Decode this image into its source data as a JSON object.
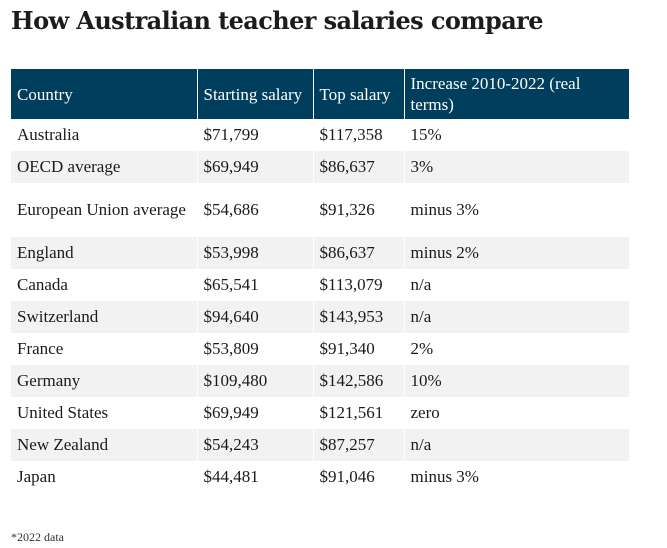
{
  "title": "How Australian teacher salaries compare",
  "table": {
    "headers": [
      "Country",
      "Starting salary",
      "Top salary",
      "Increase 2010-2022 (real terms)"
    ],
    "rows": [
      [
        "Australia",
        "$71,799",
        "$117,358",
        "15%"
      ],
      [
        "OECD average",
        "$69,949",
        "$86,637",
        "3%"
      ],
      [
        "European Union average",
        "$54,686",
        "$91,326",
        "minus 3%"
      ],
      [
        "England",
        "$53,998",
        "$86,637",
        "minus 2%"
      ],
      [
        "Canada",
        "$65,541",
        "$113,079",
        "n/a"
      ],
      [
        "Switzerland",
        "$94,640",
        "$143,953",
        "n/a"
      ],
      [
        "France",
        "$53,809",
        "$91,340",
        "2%"
      ],
      [
        "Germany",
        "$109,480",
        "$142,586",
        "10%"
      ],
      [
        "United States",
        "$69,949",
        "$121,561",
        "zero"
      ],
      [
        "New Zealand",
        "$54,243",
        "$87,257",
        "n/a"
      ],
      [
        "Japan",
        "$44,481",
        "$91,046",
        "minus 3%"
      ]
    ]
  },
  "footnote": "*2022 data",
  "colors": {
    "header_bg": "#003e5e",
    "header_text": "#ffffff",
    "stripe": "#f2f2f2"
  }
}
